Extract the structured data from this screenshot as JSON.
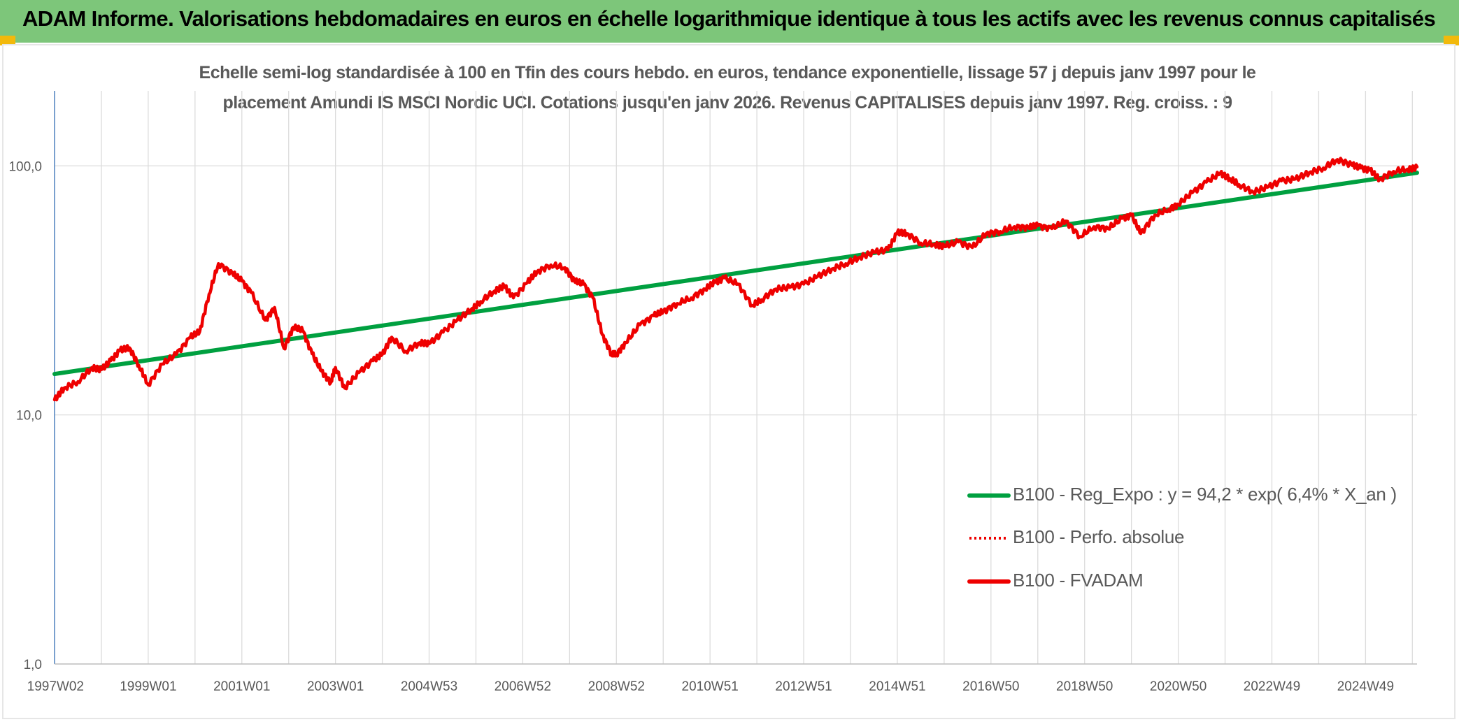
{
  "header": {
    "title": "ADAM Informe. Valorisations hebdomadaires en euros en échelle logarithmique identique à tous les actifs avec les revenus connus capitalisés"
  },
  "colors": {
    "banner": "#7dc67a",
    "corner_accent": "#f2b90c",
    "regression": "#00a040",
    "fvadam": "#ee0000",
    "perfo": "#ee0000"
  },
  "chart_data": {
    "type": "line",
    "title_line1": "Echelle semi-log standardisée à 100 en Tfin des cours hebdo. en euros, tendance exponentielle, lissage 57 j depuis janv 1997 pour le",
    "title_line2": "placement Amundi IS MSCI Nordic UCI. Cotations jusqu'en janv 2026. Revenus CAPITALISES depuis janv 1997. Reg. croiss. : 9",
    "y_scale": "log",
    "ylim": [
      1,
      200
    ],
    "xlim": [
      1997.0,
      2026.1
    ],
    "y_ticks": [
      {
        "value": 1,
        "label": "1,0"
      },
      {
        "value": 10,
        "label": "10,0"
      },
      {
        "value": 100,
        "label": "100,0"
      }
    ],
    "x_ticks": [
      {
        "value": 1997.02,
        "label": "1997W02"
      },
      {
        "value": 1999.0,
        "label": "1999W01"
      },
      {
        "value": 2001.0,
        "label": "2001W01"
      },
      {
        "value": 2003.0,
        "label": "2003W01"
      },
      {
        "value": 2005.0,
        "label": "2004W53"
      },
      {
        "value": 2007.0,
        "label": "2006W52"
      },
      {
        "value": 2009.0,
        "label": "2008W52"
      },
      {
        "value": 2011.0,
        "label": "2010W51"
      },
      {
        "value": 2013.0,
        "label": "2012W51"
      },
      {
        "value": 2015.0,
        "label": "2014W51"
      },
      {
        "value": 2017.0,
        "label": "2016W50"
      },
      {
        "value": 2019.0,
        "label": "2018W50"
      },
      {
        "value": 2021.0,
        "label": "2020W50"
      },
      {
        "value": 2023.0,
        "label": "2022W49"
      },
      {
        "value": 2025.0,
        "label": "2024W49"
      }
    ],
    "grid": true,
    "legend_position": "bottom-right",
    "series": [
      {
        "name": "B100 - Reg_Expo : y = 94,2 * exp( 6,4% *  X_an )",
        "style": "solid",
        "x": [
          1997.0,
          2026.1
        ],
        "y": [
          14.6,
          93.8
        ]
      },
      {
        "name": "B100 - Perfo. absolue",
        "style": "dotted",
        "x": [],
        "y": []
      },
      {
        "name": "B100 - FVADAM",
        "style": "solid",
        "x": [
          1997.0,
          1997.2,
          1997.5,
          1997.8,
          1998.0,
          1998.2,
          1998.4,
          1998.6,
          1998.8,
          1999.0,
          1999.3,
          1999.6,
          1999.9,
          2000.1,
          2000.3,
          2000.5,
          2000.8,
          2001.0,
          2001.2,
          2001.5,
          2001.7,
          2001.9,
          2002.1,
          2002.3,
          2002.5,
          2002.7,
          2002.9,
          2003.0,
          2003.2,
          2003.5,
          2003.8,
          2004.0,
          2004.2,
          2004.5,
          2004.8,
          2005.0,
          2005.3,
          2005.6,
          2005.9,
          2006.1,
          2006.4,
          2006.6,
          2006.8,
          2007.1,
          2007.3,
          2007.6,
          2007.9,
          2008.1,
          2008.3,
          2008.5,
          2008.7,
          2008.9,
          2009.0,
          2009.2,
          2009.5,
          2009.8,
          2010.0,
          2010.3,
          2010.6,
          2010.9,
          2011.1,
          2011.3,
          2011.6,
          2011.9,
          2012.1,
          2012.4,
          2012.7,
          2013.0,
          2013.3,
          2013.6,
          2013.9,
          2014.2,
          2014.5,
          2014.8,
          2015.0,
          2015.2,
          2015.5,
          2015.8,
          2016.0,
          2016.3,
          2016.6,
          2016.9,
          2017.2,
          2017.5,
          2017.8,
          2018.0,
          2018.3,
          2018.6,
          2018.9,
          2019.2,
          2019.5,
          2019.8,
          2020.0,
          2020.2,
          2020.5,
          2020.8,
          2021.0,
          2021.3,
          2021.6,
          2021.9,
          2022.1,
          2022.3,
          2022.6,
          2022.9,
          2023.2,
          2023.5,
          2023.8,
          2024.1,
          2024.4,
          2024.7,
          2024.9,
          2025.1,
          2025.3,
          2025.6,
          2025.9,
          2026.1
        ],
        "y": [
          11.5,
          12.8,
          13.6,
          15.5,
          15.2,
          16.5,
          18.2,
          18.6,
          15.8,
          13.2,
          16.0,
          17.5,
          20.5,
          21.6,
          30.5,
          40.5,
          37.0,
          34.5,
          31.0,
          24.0,
          27.0,
          18.5,
          22.5,
          21.8,
          17.6,
          15.0,
          13.5,
          15.5,
          12.8,
          14.8,
          16.5,
          17.5,
          20.5,
          18.0,
          19.5,
          19.3,
          21.5,
          24.0,
          26.5,
          28.5,
          31.5,
          33.0,
          29.5,
          34.0,
          37.5,
          40.0,
          39.0,
          34.5,
          33.5,
          29.5,
          21.0,
          17.5,
          17.5,
          19.5,
          23.0,
          25.0,
          26.0,
          28.0,
          29.5,
          32.0,
          34.0,
          35.5,
          33.5,
          27.5,
          29.0,
          32.0,
          32.5,
          33.5,
          36.0,
          38.5,
          40.5,
          43.0,
          45.0,
          46.0,
          54.0,
          53.5,
          49.0,
          48.5,
          47.5,
          49.5,
          47.0,
          53.5,
          54.5,
          57.0,
          56.5,
          57.5,
          56.0,
          60.0,
          52.0,
          57.0,
          56.0,
          61.5,
          63.5,
          53.5,
          63.5,
          67.0,
          70.0,
          78.0,
          86.0,
          93.5,
          89.0,
          84.0,
          78.5,
          82.0,
          87.0,
          88.5,
          94.0,
          98.0,
          106.0,
          101.0,
          98.0,
          96.0,
          88.0,
          95.0,
          97.0,
          99.0
        ]
      }
    ]
  }
}
